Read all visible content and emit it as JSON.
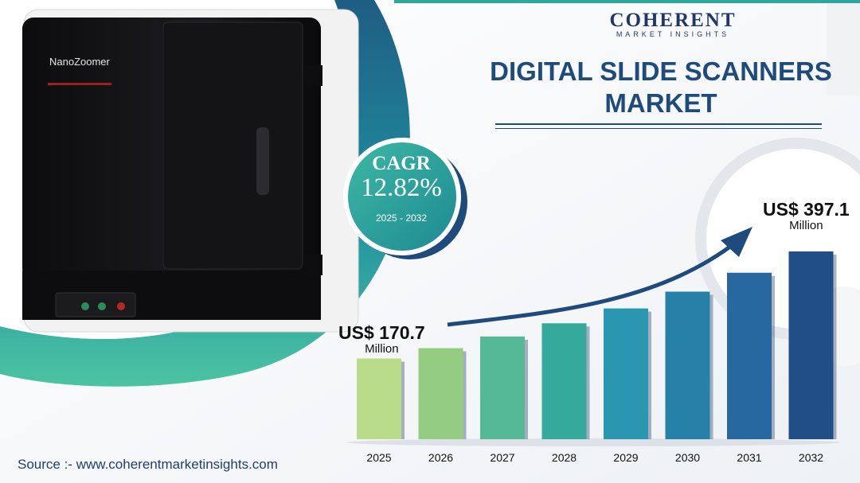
{
  "brand": {
    "name": "COHERENT",
    "tagline": "MARKET INSIGHTS"
  },
  "title": "DIGITAL SLIDE SCANNERS MARKET",
  "product": {
    "device_label": "NanoZoomer"
  },
  "cagr": {
    "label": "CAGR",
    "value": "12.82%",
    "period": "2025 - 2032"
  },
  "start_label": {
    "amount": "US$ 170.7",
    "unit": "Million"
  },
  "end_label": {
    "amount": "US$ 397.1",
    "unit": "Million"
  },
  "source": "Source :- www.coherentmarketinsights.com",
  "colors": {
    "title": "#1e4b7c",
    "teal": "#2ea89a",
    "navy": "#1e4b7c"
  },
  "chart_data": {
    "type": "bar",
    "categories": [
      "2025",
      "2026",
      "2027",
      "2028",
      "2029",
      "2030",
      "2031",
      "2032"
    ],
    "values": [
      170.7,
      192.6,
      217.3,
      245.2,
      276.6,
      312.1,
      352.1,
      397.1
    ],
    "title": "",
    "xlabel": "",
    "ylabel": "",
    "ylim": [
      0,
      397.1
    ],
    "bar_colors": [
      "#b9dc8a",
      "#94cc82",
      "#55b998",
      "#35a99c",
      "#2a96b0",
      "#2780a8",
      "#2768a0",
      "#1f4f86"
    ],
    "grid": false,
    "trend_arrow": true
  }
}
